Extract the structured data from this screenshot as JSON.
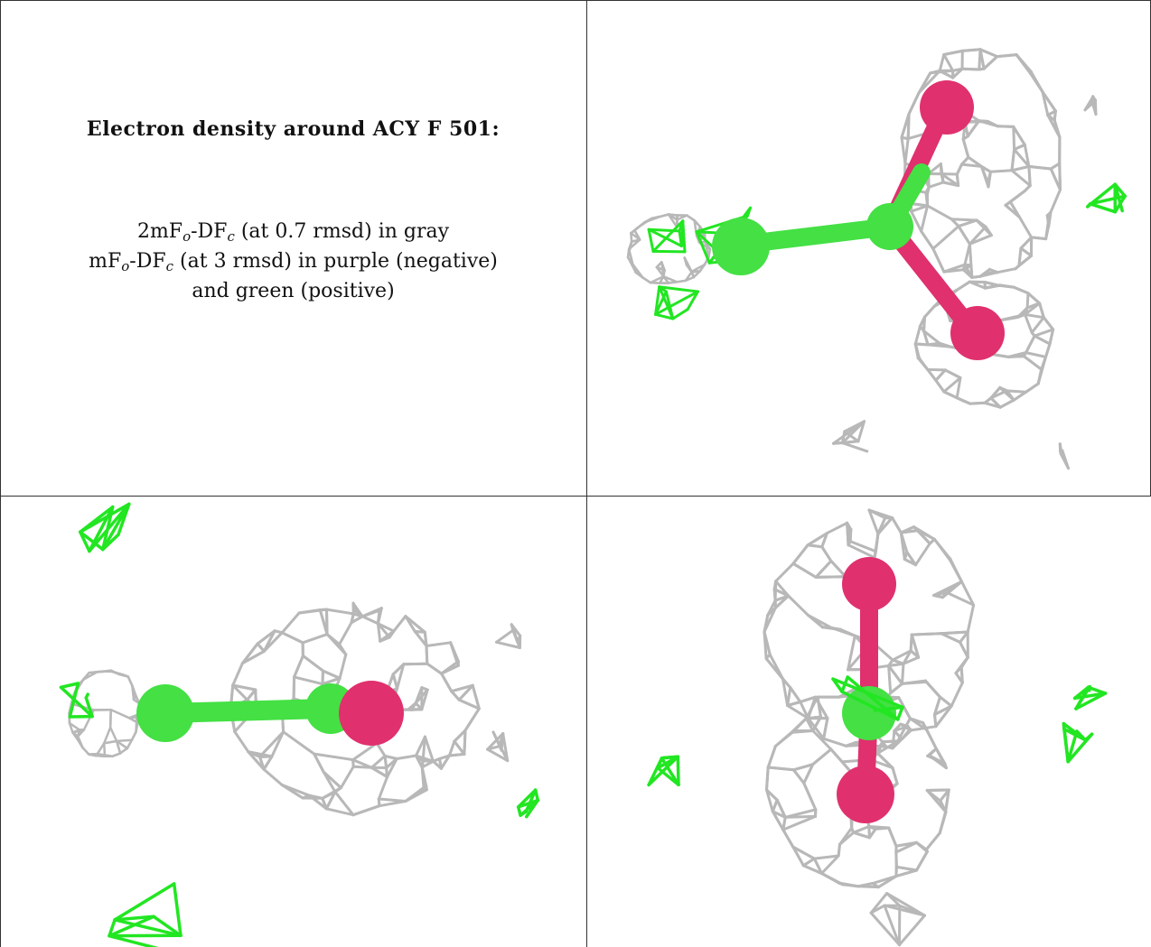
{
  "caption": {
    "title": "Electron density around ACY F 501:",
    "map_2fofc": {
      "coef": "2mF",
      "sub_o": "o",
      "minus": "-DF",
      "sub_c": "c",
      "rest": " (at 0.7 rmsd) in gray"
    },
    "map_fofc": {
      "coef": "mF",
      "sub_o": "o",
      "minus": "-DF",
      "sub_c": "c",
      "rest": " (at 3 rmsd) in purple (negative)"
    },
    "map_fofc_line2": "and green (positive)"
  },
  "colors": {
    "density_mesh": "#b8b8b8",
    "positive_mesh": "#22e622",
    "oxygen_atom": "#e0306e",
    "carbon_atom": "#44e044",
    "panel_border": "#333333"
  },
  "views": [
    {
      "name": "view-top-right"
    },
    {
      "name": "view-bottom-left"
    },
    {
      "name": "view-bottom-right"
    }
  ]
}
